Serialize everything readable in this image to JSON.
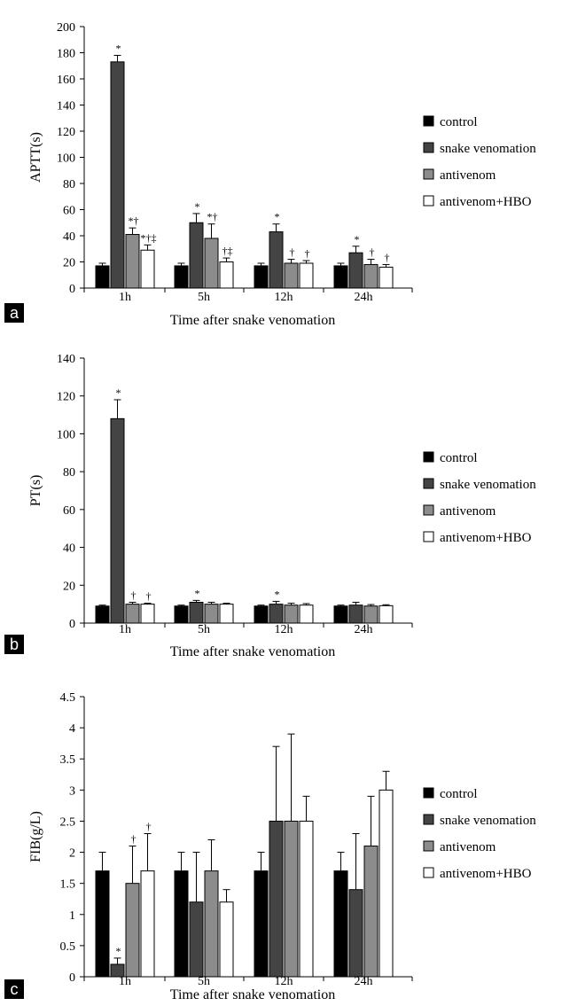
{
  "legend": [
    "control",
    "snake venomation",
    "antivenom",
    "antivenom+HBO"
  ],
  "colors": [
    "#000000",
    "#444444",
    "#8c8c8c",
    "#ffffff"
  ],
  "chart_data": [
    {
      "type": "bar",
      "panel_label": "a",
      "ylabel": "APTT(s)",
      "xlabel": "Time after snake venomation",
      "categories": [
        "1h",
        "5h",
        "12h",
        "24h"
      ],
      "ylim": [
        0,
        200
      ],
      "yticks": [
        "0",
        "20",
        "40",
        "60",
        "80",
        "100",
        "120",
        "140",
        "160",
        "180",
        "200"
      ],
      "series": [
        {
          "name": "control",
          "values": [
            17,
            17,
            17,
            17
          ],
          "errors": [
            2,
            2,
            2,
            2
          ],
          "marks": [
            "",
            "",
            "",
            ""
          ]
        },
        {
          "name": "snake venomation",
          "values": [
            173,
            50,
            43,
            27
          ],
          "errors": [
            5,
            7,
            6,
            5
          ],
          "marks": [
            "*",
            "*",
            "*",
            "*"
          ]
        },
        {
          "name": "antivenom",
          "values": [
            41,
            38,
            19,
            18
          ],
          "errors": [
            5,
            11,
            3,
            4
          ],
          "marks": [
            "*†",
            "*†",
            "†",
            "†"
          ]
        },
        {
          "name": "antivenom+HBO",
          "values": [
            29,
            20,
            19,
            16
          ],
          "errors": [
            4,
            3,
            2,
            2
          ],
          "marks": [
            "*†‡",
            "†‡",
            "†",
            "†"
          ]
        }
      ]
    },
    {
      "type": "bar",
      "panel_label": "b",
      "ylabel": "PT(s)",
      "xlabel": "Time after snake venomation",
      "categories": [
        "1h",
        "5h",
        "12h",
        "24h"
      ],
      "ylim": [
        0,
        140
      ],
      "yticks": [
        "0",
        "20",
        "40",
        "60",
        "80",
        "100",
        "120",
        "140"
      ],
      "series": [
        {
          "name": "control",
          "values": [
            9,
            9,
            9,
            9
          ],
          "errors": [
            0.5,
            0.5,
            0.5,
            0.5
          ],
          "marks": [
            "",
            "",
            "",
            ""
          ]
        },
        {
          "name": "snake venomation",
          "values": [
            108,
            11,
            10,
            9.5
          ],
          "errors": [
            10,
            1,
            1.5,
            1.5
          ],
          "marks": [
            "*",
            "*",
            "*",
            ""
          ]
        },
        {
          "name": "antivenom",
          "values": [
            10,
            10,
            9.5,
            9
          ],
          "errors": [
            1,
            1,
            1,
            0.8
          ],
          "marks": [
            "†",
            "",
            "",
            ""
          ]
        },
        {
          "name": "antivenom+HBO",
          "values": [
            10,
            10,
            9.5,
            9.2
          ],
          "errors": [
            0.5,
            0.5,
            0.8,
            0.5
          ],
          "marks": [
            "†",
            "",
            "",
            ""
          ]
        }
      ]
    },
    {
      "type": "bar",
      "panel_label": "c",
      "ylabel": "FIB(g/L)",
      "xlabel": "Time after snake venomation",
      "categories": [
        "1h",
        "5h",
        "12h",
        "24h"
      ],
      "ylim": [
        0,
        4.5
      ],
      "yticks": [
        "0",
        "0.5",
        "1",
        "1.5",
        "2",
        "2.5",
        "3",
        "3.5",
        "4",
        "4.5"
      ],
      "series": [
        {
          "name": "control",
          "values": [
            1.7,
            1.7,
            1.7,
            1.7
          ],
          "errors": [
            0.3,
            0.3,
            0.3,
            0.3
          ],
          "marks": [
            "",
            "",
            "",
            ""
          ]
        },
        {
          "name": "snake venomation",
          "values": [
            0.2,
            1.2,
            2.5,
            1.4
          ],
          "errors": [
            0.1,
            0.8,
            1.2,
            0.9
          ],
          "marks": [
            "*",
            "",
            "",
            ""
          ]
        },
        {
          "name": "antivenom",
          "values": [
            1.5,
            1.7,
            2.5,
            2.1
          ],
          "errors": [
            0.6,
            0.5,
            1.4,
            0.8
          ],
          "marks": [
            "†",
            "",
            "",
            ""
          ]
        },
        {
          "name": "antivenom+HBO",
          "values": [
            1.7,
            1.2,
            2.5,
            3.0
          ],
          "errors": [
            0.6,
            0.2,
            0.4,
            0.3
          ],
          "marks": [
            "†",
            "",
            "",
            ""
          ]
        }
      ]
    }
  ]
}
